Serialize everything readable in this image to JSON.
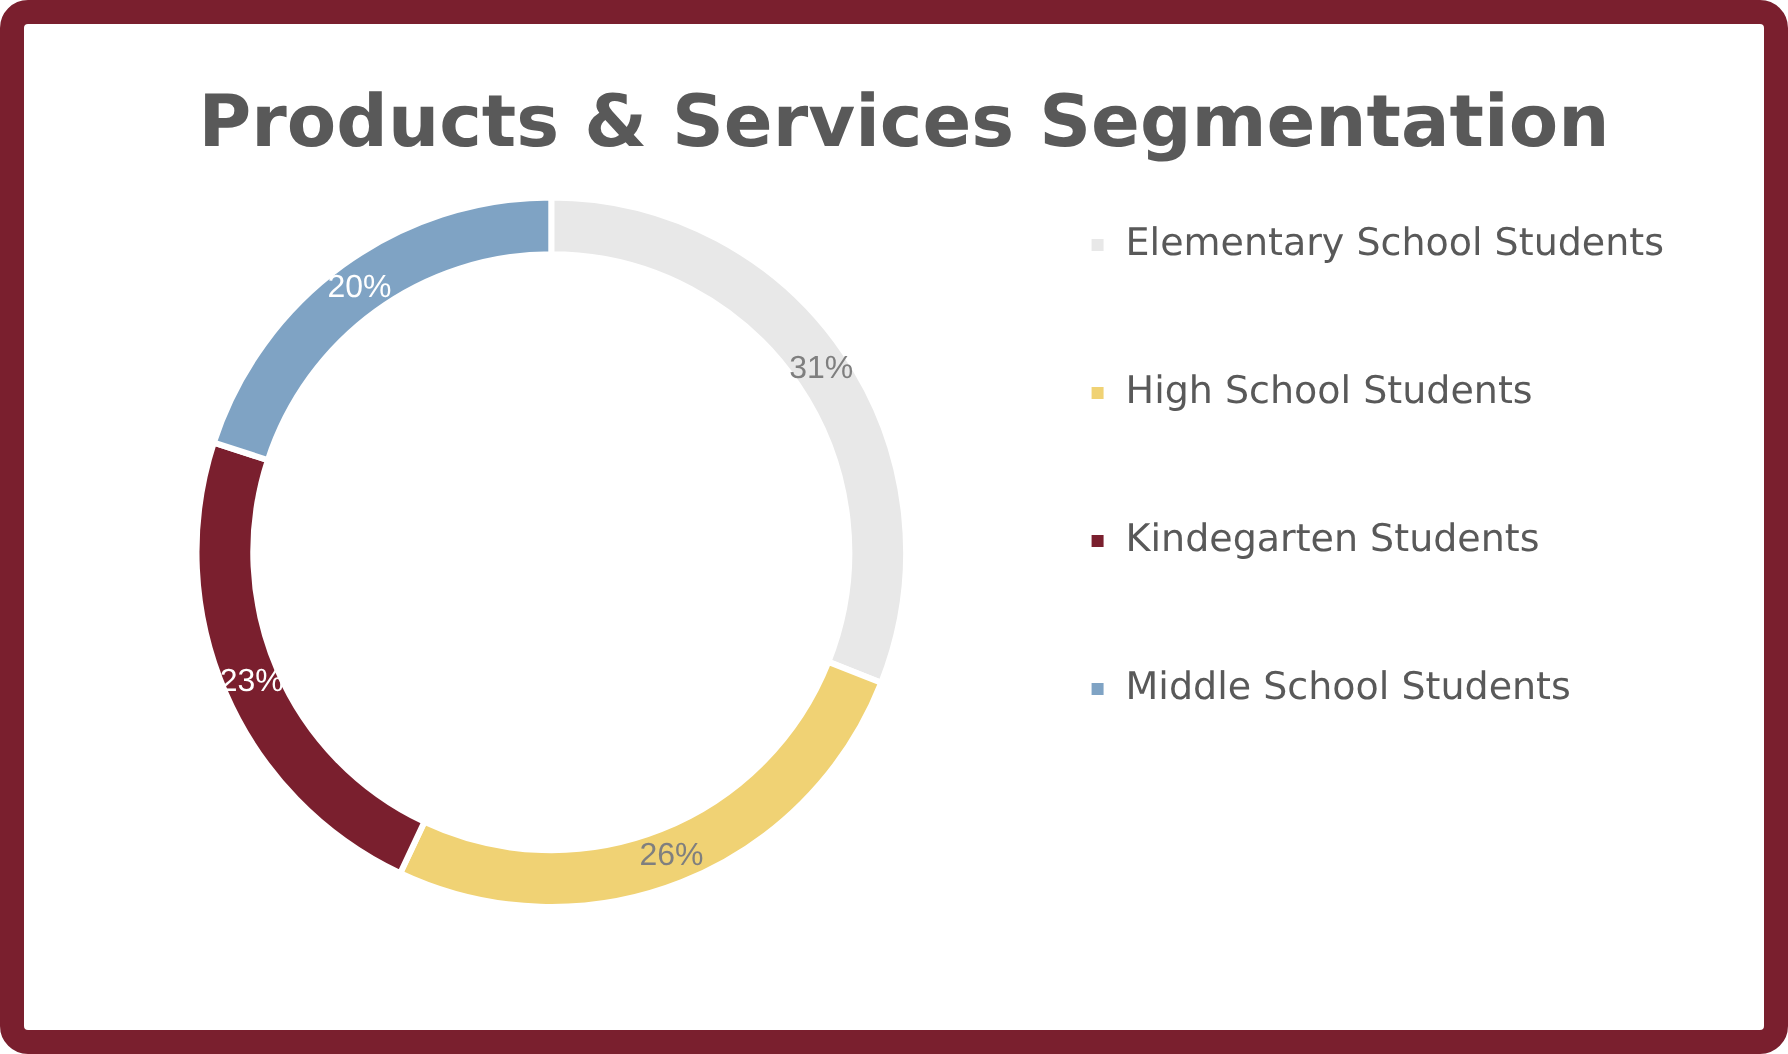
{
  "chart_data": {
    "type": "donut",
    "title": "Products & Services Segmentation",
    "categories": [
      "Elementary School Students",
      "High School Students",
      "Kindegarten Students",
      "Middle School Students"
    ],
    "values": [
      31,
      26,
      23,
      20
    ],
    "colors": [
      "#e8e8e8",
      "#f0d274",
      "#7a1f2e",
      "#7fa3c4"
    ],
    "value_labels": [
      "31%",
      "26%",
      "23%",
      "20%"
    ],
    "legend": "right"
  }
}
